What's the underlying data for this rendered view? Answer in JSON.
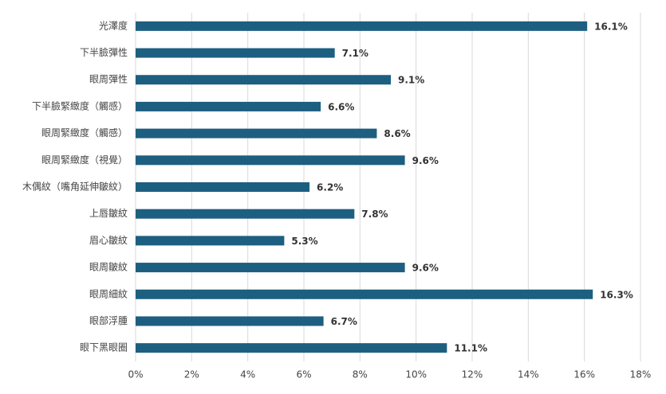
{
  "chart_data": {
    "type": "barh",
    "categories": [
      "光澤度",
      "下半臉彈性",
      "眼周彈性",
      "下半臉緊緻度（觸感）",
      "眼周緊緻度（觸感）",
      "眼周緊緻度（視覺）",
      "木偶紋（嘴角延伸皺紋）",
      "上唇皺紋",
      "眉心皺紋",
      "眼周皺紋",
      "眼周細紋",
      "眼部浮腫",
      "眼下黑眼圈"
    ],
    "values": [
      16.1,
      7.1,
      9.1,
      6.6,
      8.6,
      9.6,
      6.2,
      7.8,
      5.3,
      9.6,
      16.3,
      6.7,
      11.1
    ],
    "value_labels": [
      "16.1%",
      "7.1%",
      "9.1%",
      "6.6%",
      "8.6%",
      "9.6%",
      "6.2%",
      "7.8%",
      "5.3%",
      "9.6%",
      "16.3%",
      "6.7%",
      "11.1%"
    ],
    "color": "#1d5f80",
    "xlim": [
      0,
      18
    ],
    "xticks": [
      {
        "value": 0,
        "label": "0%"
      },
      {
        "value": 2,
        "label": "2%"
      },
      {
        "value": 4,
        "label": "4%"
      },
      {
        "value": 6,
        "label": "6%"
      },
      {
        "value": 8,
        "label": "8%"
      },
      {
        "value": 10,
        "label": "10%"
      },
      {
        "value": 12,
        "label": "12%"
      },
      {
        "value": 14,
        "label": "14%"
      },
      {
        "value": 16,
        "label": "16%"
      },
      {
        "value": 18,
        "label": "18%"
      }
    ],
    "grid": true
  }
}
